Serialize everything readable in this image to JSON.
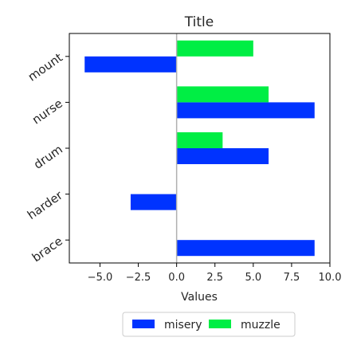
{
  "chart_data": {
    "type": "bar",
    "orientation": "horizontal",
    "title": "Title",
    "xlabel": "Values",
    "ylabel": "",
    "xlim": [
      -7,
      10
    ],
    "xticks": [
      -5.0,
      -2.5,
      0.0,
      2.5,
      5.0,
      7.5,
      10.0
    ],
    "xtick_labels": [
      "−5.0",
      "−2.5",
      "0.0",
      "2.5",
      "5.0",
      "7.5",
      "10.0"
    ],
    "categories": [
      "mount",
      "nurse",
      "drum",
      "harder",
      "brace"
    ],
    "series": [
      {
        "name": "misery",
        "color": "#0033ff",
        "values": [
          -6,
          9,
          6,
          -3,
          9
        ]
      },
      {
        "name": "muzzle",
        "color": "#00ee44",
        "values": [
          5,
          6,
          3,
          0,
          0
        ]
      }
    ],
    "grid": false,
    "legend_position": "bottom"
  }
}
